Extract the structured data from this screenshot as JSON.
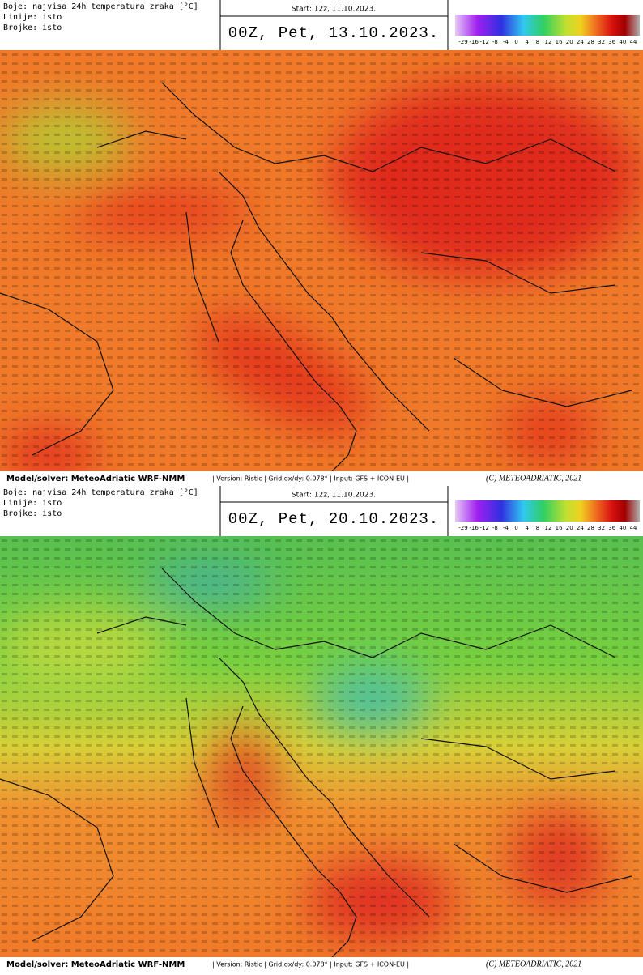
{
  "panels": [
    {
      "header": {
        "legend_lines": [
          "Boje: najvisa 24h temperatura zraka [°C]",
          "Linije: isto",
          "Brojke: isto"
        ],
        "start": "Start: 12z, 11.10.2023.",
        "valid_time": "00Z, Pet, 13.10.2023."
      },
      "colorbar": {
        "labels": [
          -29,
          -16,
          -12,
          -8,
          -4,
          0,
          4,
          8,
          12,
          16,
          20,
          24,
          28,
          32,
          36,
          40,
          44
        ]
      },
      "footer": {
        "model": "Model/solver: MeteoAdriatic WRF-NMM",
        "info": "| Version: Ristic | Grid dx/dy: 0.078° | Input: GFS + ICON-EU |",
        "copyright": "(C) METEOADRIATIC, 2021"
      }
    },
    {
      "header": {
        "legend_lines": [
          "Boje: najvisa 24h temperatura zraka [°C]",
          "Linije: isto",
          "Brojke: isto"
        ],
        "start": "Start: 12z, 11.10.2023.",
        "valid_time": "00Z, Pet, 20.10.2023."
      },
      "colorbar": {
        "labels": [
          -29,
          -16,
          -12,
          -8,
          -4,
          0,
          4,
          8,
          12,
          16,
          20,
          24,
          28,
          32,
          36,
          40,
          44
        ]
      },
      "footer": {
        "model": "Model/solver: MeteoAdriatic WRF-NMM",
        "info": "| Version: Ristic | Grid dx/dy: 0.078° | Input: GFS + ICON-EU |",
        "copyright": "(C) METEOADRIATIC, 2021"
      }
    }
  ]
}
